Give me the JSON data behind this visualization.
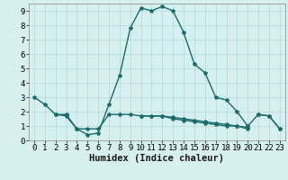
{
  "xlabel": "Humidex (Indice chaleur)",
  "ylabel": "",
  "background_color": "#d6efef",
  "grid_color": "#b8dede",
  "line_color": "#1a6b6b",
  "xlim": [
    -0.5,
    23.5
  ],
  "ylim": [
    0,
    9.5
  ],
  "xticks": [
    0,
    1,
    2,
    3,
    4,
    5,
    6,
    7,
    8,
    9,
    10,
    11,
    12,
    13,
    14,
    15,
    16,
    17,
    18,
    19,
    20,
    21,
    22,
    23
  ],
  "yticks": [
    0,
    1,
    2,
    3,
    4,
    5,
    6,
    7,
    8,
    9
  ],
  "series": [
    [
      3.0,
      2.5,
      1.8,
      1.8,
      0.8,
      0.4,
      0.5,
      2.5,
      4.5,
      7.8,
      9.2,
      9.0,
      9.3,
      9.0,
      7.5,
      5.3,
      4.7,
      3.0,
      2.8,
      2.0,
      1.0,
      1.8,
      1.7,
      0.8
    ],
    [
      null,
      null,
      1.8,
      1.7,
      0.8,
      0.8,
      0.8,
      1.8,
      1.8,
      1.8,
      1.7,
      1.7,
      1.7,
      1.5,
      1.4,
      1.3,
      1.2,
      1.1,
      1.0,
      1.0,
      0.8,
      null,
      null,
      null
    ],
    [
      null,
      null,
      null,
      null,
      null,
      null,
      null,
      null,
      null,
      null,
      1.7,
      1.7,
      1.7,
      1.6,
      1.5,
      1.4,
      1.3,
      1.2,
      1.1,
      1.0,
      0.9,
      null,
      null,
      null
    ],
    [
      null,
      null,
      null,
      null,
      null,
      null,
      null,
      null,
      null,
      null,
      null,
      null,
      null,
      null,
      null,
      null,
      null,
      null,
      null,
      null,
      null,
      1.8,
      1.7,
      0.8
    ]
  ],
  "marker": "*",
  "marker_size": 3,
  "line_width": 1.0,
  "tick_fontsize": 6.5,
  "xlabel_fontsize": 7.5
}
